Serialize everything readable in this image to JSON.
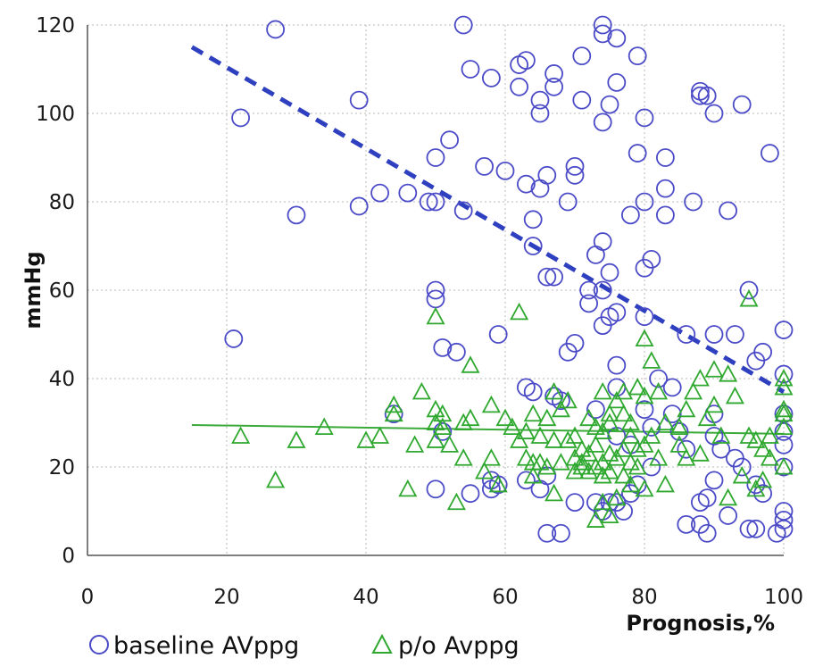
{
  "chart_data": {
    "type": "scatter",
    "title": "",
    "xlabel": "Prognosis,%",
    "ylabel": "mmHg",
    "xlim": [
      0,
      100
    ],
    "ylim": [
      0,
      120
    ],
    "x_ticks": [
      0,
      20,
      40,
      60,
      80,
      100
    ],
    "y_ticks": [
      0,
      20,
      40,
      60,
      80,
      100,
      120
    ],
    "grid": "dotted, both axes",
    "legend_position": "bottom-left",
    "series": [
      {
        "name": "baseline AVppg",
        "marker": "circle",
        "color": "#4b4bc8",
        "points": [
          [
            21,
            49
          ],
          [
            22,
            99
          ],
          [
            27,
            119
          ],
          [
            30,
            77
          ],
          [
            39,
            79
          ],
          [
            39,
            103
          ],
          [
            42,
            82
          ],
          [
            44,
            32
          ],
          [
            46,
            82
          ],
          [
            49,
            80
          ],
          [
            50,
            80
          ],
          [
            50,
            90
          ],
          [
            50,
            60
          ],
          [
            50,
            58
          ],
          [
            50,
            15
          ],
          [
            51,
            28
          ],
          [
            51,
            47
          ],
          [
            52,
            94
          ],
          [
            53,
            46
          ],
          [
            54,
            78
          ],
          [
            54,
            120
          ],
          [
            55,
            110
          ],
          [
            55,
            14
          ],
          [
            57,
            88
          ],
          [
            58,
            108
          ],
          [
            58,
            17
          ],
          [
            59,
            50
          ],
          [
            60,
            87
          ],
          [
            62,
            111
          ],
          [
            62,
            106
          ],
          [
            63,
            112
          ],
          [
            63,
            84
          ],
          [
            63,
            38
          ],
          [
            64,
            76
          ],
          [
            64,
            70
          ],
          [
            65,
            100
          ],
          [
            65,
            103
          ],
          [
            65,
            83
          ],
          [
            66,
            86
          ],
          [
            66,
            63
          ],
          [
            67,
            63
          ],
          [
            67,
            109
          ],
          [
            67,
            106
          ],
          [
            68,
            35
          ],
          [
            69,
            80
          ],
          [
            70,
            86
          ],
          [
            70,
            88
          ],
          [
            70,
            48
          ],
          [
            69,
            46
          ],
          [
            71,
            113
          ],
          [
            71,
            103
          ],
          [
            72,
            60
          ],
          [
            72,
            57
          ],
          [
            73,
            68
          ],
          [
            74,
            120
          ],
          [
            74,
            118
          ],
          [
            74,
            98
          ],
          [
            74,
            71
          ],
          [
            74,
            60
          ],
          [
            74,
            52
          ],
          [
            75,
            102
          ],
          [
            75,
            64
          ],
          [
            75,
            54
          ],
          [
            76,
            117
          ],
          [
            76,
            107
          ],
          [
            76,
            55
          ],
          [
            76,
            43
          ],
          [
            78,
            77
          ],
          [
            79,
            113
          ],
          [
            79,
            91
          ],
          [
            80,
            99
          ],
          [
            80,
            80
          ],
          [
            80,
            65
          ],
          [
            80,
            54
          ],
          [
            81,
            67
          ],
          [
            81,
            20
          ],
          [
            82,
            40
          ],
          [
            83,
            90
          ],
          [
            83,
            83
          ],
          [
            83,
            77
          ],
          [
            84,
            38
          ],
          [
            86,
            50
          ],
          [
            87,
            80
          ],
          [
            88,
            105
          ],
          [
            88,
            104
          ],
          [
            89,
            104
          ],
          [
            90,
            100
          ],
          [
            90,
            50
          ],
          [
            90,
            32
          ],
          [
            90,
            27
          ],
          [
            92,
            78
          ],
          [
            93,
            50
          ],
          [
            94,
            102
          ],
          [
            94,
            20
          ],
          [
            95,
            60
          ],
          [
            96,
            44
          ],
          [
            97,
            46
          ],
          [
            98,
            91
          ],
          [
            100,
            51
          ],
          [
            100,
            41
          ],
          [
            100,
            32
          ],
          [
            100,
            28
          ],
          [
            100,
            25
          ],
          [
            100,
            20
          ],
          [
            100,
            10
          ],
          [
            100,
            8
          ],
          [
            100,
            6
          ],
          [
            99,
            5
          ],
          [
            96,
            6
          ],
          [
            95,
            6
          ],
          [
            89,
            5
          ],
          [
            88,
            7
          ],
          [
            86,
            7
          ],
          [
            88,
            12
          ],
          [
            89,
            13
          ],
          [
            90,
            17
          ],
          [
            91,
            24
          ],
          [
            92,
            9
          ],
          [
            93,
            22
          ],
          [
            96,
            16
          ],
          [
            97,
            14
          ],
          [
            73,
            12
          ],
          [
            74,
            10
          ],
          [
            75,
            12
          ],
          [
            76,
            12
          ],
          [
            77,
            10
          ],
          [
            78,
            14
          ],
          [
            79,
            16
          ],
          [
            76,
            27
          ],
          [
            78,
            25
          ],
          [
            73,
            33
          ],
          [
            76,
            38
          ],
          [
            80,
            33
          ],
          [
            81,
            29
          ],
          [
            84,
            32
          ],
          [
            86,
            24
          ],
          [
            85,
            28
          ],
          [
            70,
            12
          ],
          [
            66,
            5
          ],
          [
            68,
            5
          ],
          [
            63,
            17
          ],
          [
            65,
            15
          ],
          [
            66,
            18
          ],
          [
            64,
            37
          ],
          [
            67,
            36
          ],
          [
            58,
            15
          ],
          [
            59,
            16
          ]
        ]
      },
      {
        "name": "p/o Avppg",
        "marker": "triangle",
        "color": "#2fa82f",
        "points": [
          [
            22,
            27
          ],
          [
            27,
            17
          ],
          [
            30,
            26
          ],
          [
            34,
            29
          ],
          [
            40,
            26
          ],
          [
            42,
            27
          ],
          [
            44,
            34
          ],
          [
            44,
            32
          ],
          [
            46,
            15
          ],
          [
            47,
            25
          ],
          [
            48,
            37
          ],
          [
            50,
            54
          ],
          [
            50,
            33
          ],
          [
            50,
            30
          ],
          [
            50,
            26
          ],
          [
            51,
            32
          ],
          [
            51,
            29
          ],
          [
            52,
            25
          ],
          [
            53,
            12
          ],
          [
            54,
            22
          ],
          [
            54,
            30
          ],
          [
            55,
            43
          ],
          [
            55,
            31
          ],
          [
            57,
            19
          ],
          [
            58,
            22
          ],
          [
            58,
            34
          ],
          [
            59,
            16
          ],
          [
            60,
            31
          ],
          [
            61,
            29
          ],
          [
            62,
            55
          ],
          [
            62,
            26
          ],
          [
            63,
            28
          ],
          [
            63,
            22
          ],
          [
            64,
            32
          ],
          [
            64,
            21
          ],
          [
            64,
            18
          ],
          [
            65,
            21
          ],
          [
            65,
            27
          ],
          [
            66,
            20
          ],
          [
            66,
            31
          ],
          [
            67,
            14
          ],
          [
            67,
            26
          ],
          [
            67,
            37
          ],
          [
            68,
            21
          ],
          [
            68,
            33
          ],
          [
            69,
            26
          ],
          [
            69,
            35
          ],
          [
            70,
            19
          ],
          [
            70,
            27
          ],
          [
            70,
            22
          ],
          [
            71,
            20
          ],
          [
            71,
            24
          ],
          [
            71,
            21
          ],
          [
            72,
            19
          ],
          [
            72,
            31
          ],
          [
            72,
            23
          ],
          [
            73,
            8
          ],
          [
            73,
            20
          ],
          [
            73,
            25
          ],
          [
            73,
            29
          ],
          [
            74,
            37
          ],
          [
            74,
            21
          ],
          [
            74,
            18
          ],
          [
            74,
            12
          ],
          [
            74,
            28
          ],
          [
            75,
            9
          ],
          [
            75,
            19
          ],
          [
            75,
            23
          ],
          [
            75,
            30
          ],
          [
            75,
            32
          ],
          [
            76,
            22
          ],
          [
            76,
            35
          ],
          [
            76,
            13
          ],
          [
            77,
            24
          ],
          [
            77,
            32
          ],
          [
            77,
            37
          ],
          [
            77,
            18
          ],
          [
            78,
            30
          ],
          [
            78,
            21
          ],
          [
            78,
            16
          ],
          [
            78,
            27
          ],
          [
            79,
            38
          ],
          [
            79,
            24
          ],
          [
            79,
            20
          ],
          [
            80,
            49
          ],
          [
            80,
            25
          ],
          [
            80,
            15
          ],
          [
            80,
            36
          ],
          [
            81,
            44
          ],
          [
            81,
            27
          ],
          [
            82,
            22
          ],
          [
            82,
            37
          ],
          [
            83,
            16
          ],
          [
            83,
            30
          ],
          [
            85,
            25
          ],
          [
            85,
            29
          ],
          [
            86,
            22
          ],
          [
            86,
            33
          ],
          [
            87,
            37
          ],
          [
            88,
            23
          ],
          [
            88,
            40
          ],
          [
            89,
            31
          ],
          [
            90,
            42
          ],
          [
            90,
            34
          ],
          [
            91,
            27
          ],
          [
            92,
            13
          ],
          [
            92,
            41
          ],
          [
            93,
            36
          ],
          [
            94,
            18
          ],
          [
            95,
            58
          ],
          [
            95,
            27
          ],
          [
            96,
            26
          ],
          [
            96,
            15
          ],
          [
            97,
            17
          ],
          [
            97,
            24
          ],
          [
            98,
            27
          ],
          [
            98,
            22
          ],
          [
            100,
            40
          ],
          [
            100,
            38
          ],
          [
            100,
            33
          ],
          [
            100,
            20
          ],
          [
            100,
            32
          ],
          [
            100,
            29
          ]
        ]
      }
    ],
    "trendlines": [
      {
        "series": "baseline AVppg",
        "style": "dashed",
        "color": "#2e3fbf",
        "x": [
          15,
          100
        ],
        "y": [
          115,
          37
        ]
      },
      {
        "series": "p/o Avppg",
        "style": "solid",
        "color": "#3aaa3a",
        "x": [
          15,
          100
        ],
        "y": [
          29.5,
          27.5
        ]
      }
    ]
  }
}
